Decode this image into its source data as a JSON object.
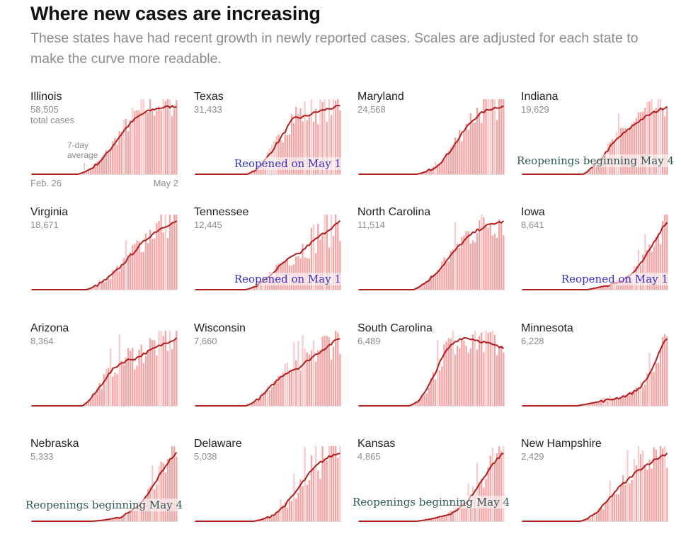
{
  "header": {
    "title": "Where new cases are increasing",
    "subtitle": "These states have had recent growth in newly reported cases. Scales are adjusted for each state to make the curve more readable."
  },
  "legend": {
    "total_label": "total cases",
    "avg_label_line1": "7-day",
    "avg_label_line2": "average",
    "date_start": "Feb. 26",
    "date_end": "May 2"
  },
  "colors": {
    "bar": "#f4a4a4",
    "bar_light": "#f8cccc",
    "line": "#b21d1d",
    "baseline": "#dddddd",
    "note_blue": "#3232c8",
    "note_teal": "#2f5a5a"
  },
  "chart_data": [
    {
      "type": "bar",
      "state": "Illinois",
      "total": "58,505",
      "x_range": [
        "Feb. 26",
        "May 2"
      ],
      "ylim": [
        0,
        1
      ],
      "shape": "ramp",
      "params": {
        "start": 0.32,
        "c": 0.58,
        "k": 11,
        "amp": 1.0,
        "jitter": 0.22
      },
      "note": null
    },
    {
      "type": "bar",
      "state": "Texas",
      "total": "31,433",
      "x_range": [
        "Feb. 26",
        "May 2"
      ],
      "ylim": [
        0,
        1
      ],
      "shape": "plateau",
      "params": {
        "start": 0.36,
        "c": 0.55,
        "k": 13,
        "amp": 0.92,
        "bump": 0.08,
        "tail": 0.12,
        "jitter": 0.25
      },
      "note": {
        "text": "Reopened on May 1",
        "color": "#3232c8",
        "style": "blue"
      }
    },
    {
      "type": "bar",
      "state": "Maryland",
      "total": "24,568",
      "x_range": [
        "Feb. 26",
        "May 2"
      ],
      "ylim": [
        0,
        1
      ],
      "shape": "ramp",
      "params": {
        "start": 0.4,
        "c": 0.68,
        "k": 12,
        "amp": 1.0,
        "jitter": 0.25
      },
      "note": null
    },
    {
      "type": "bar",
      "state": "Indiana",
      "total": "19,629",
      "x_range": [
        "Feb. 26",
        "May 2"
      ],
      "ylim": [
        0,
        1
      ],
      "shape": "plateau",
      "params": {
        "start": 0.42,
        "c": 0.58,
        "k": 13,
        "amp": 0.72,
        "bump": 0.0,
        "tail": 0.25,
        "jitter": 0.22
      },
      "note": {
        "text": "Reopenings beginning May 4",
        "color": "#2f5a5a",
        "style": "teal"
      }
    },
    {
      "type": "bar",
      "state": "Virginia",
      "total": "18,671",
      "x_range": [
        "Feb. 26",
        "May 2"
      ],
      "ylim": [
        0,
        1
      ],
      "shape": "ramp",
      "params": {
        "start": 0.38,
        "c": 0.68,
        "k": 8,
        "amp": 1.05,
        "jitter": 0.28
      },
      "note": null
    },
    {
      "type": "bar",
      "state": "Tennessee",
      "total": "12,445",
      "x_range": [
        "Feb. 26",
        "May 2"
      ],
      "ylim": [
        0,
        1
      ],
      "shape": "plateau",
      "params": {
        "start": 0.35,
        "c": 0.55,
        "k": 13,
        "amp": 0.58,
        "bump": 0.0,
        "tail": 0.4,
        "jitter": 0.35
      },
      "note": {
        "text": "Reopened on May 1",
        "color": "#3232c8",
        "style": "blue"
      }
    },
    {
      "type": "bar",
      "state": "North Carolina",
      "total": "11,514",
      "x_range": [
        "Feb. 26",
        "May 2"
      ],
      "ylim": [
        0,
        1
      ],
      "shape": "ramp",
      "params": {
        "start": 0.38,
        "c": 0.62,
        "k": 9,
        "amp": 1.0,
        "jitter": 0.3
      },
      "note": null
    },
    {
      "type": "bar",
      "state": "Iowa",
      "total": "8,641",
      "x_range": [
        "Feb. 26",
        "May 2"
      ],
      "ylim": [
        0,
        1
      ],
      "shape": "late",
      "params": {
        "start": 0.45,
        "c": 0.9,
        "k": 14,
        "amp": 1.0,
        "base": 0.18,
        "jitter": 0.3
      },
      "note": {
        "text": "Reopened on May 1",
        "color": "#3232c8",
        "style": "blue"
      }
    },
    {
      "type": "bar",
      "state": "Arizona",
      "total": "8,364",
      "x_range": [
        "Feb. 26",
        "May 2"
      ],
      "ylim": [
        0,
        1
      ],
      "shape": "plateau",
      "params": {
        "start": 0.35,
        "c": 0.48,
        "k": 15,
        "amp": 0.72,
        "bump": 0.0,
        "tail": 0.28,
        "jitter": 0.28
      },
      "note": null
    },
    {
      "type": "bar",
      "state": "Wisconsin",
      "total": "7,660",
      "x_range": [
        "Feb. 26",
        "May 2"
      ],
      "ylim": [
        0,
        1
      ],
      "shape": "plateau",
      "params": {
        "start": 0.35,
        "c": 0.52,
        "k": 14,
        "amp": 0.6,
        "bump": 0.0,
        "tail": 0.4,
        "jitter": 0.3
      },
      "note": null
    },
    {
      "type": "bar",
      "state": "South Carolina",
      "total": "6,489",
      "x_range": [
        "Feb. 26",
        "May 2"
      ],
      "ylim": [
        0,
        1
      ],
      "shape": "plateau",
      "params": {
        "start": 0.35,
        "c": 0.53,
        "k": 17,
        "amp": 0.95,
        "bump": 0.0,
        "tail": -0.18,
        "jitter": 0.28
      },
      "note": null
    },
    {
      "type": "bar",
      "state": "Minnesota",
      "total": "6,228",
      "x_range": [
        "Feb. 26",
        "May 2"
      ],
      "ylim": [
        0,
        1
      ],
      "shape": "late",
      "params": {
        "start": 0.38,
        "c": 0.93,
        "k": 18,
        "amp": 1.0,
        "base": 0.2,
        "jitter": 0.22
      },
      "note": null
    },
    {
      "type": "bar",
      "state": "Nebraska",
      "total": "5,333",
      "x_range": [
        "Feb. 26",
        "May 2"
      ],
      "ylim": [
        0,
        1
      ],
      "shape": "late",
      "params": {
        "start": 0.42,
        "c": 0.86,
        "k": 13,
        "amp": 1.0,
        "base": 0.08,
        "jitter": 0.22
      },
      "note": {
        "text": "Reopenings beginning May 4",
        "color": "#2f5a5a",
        "style": "teal"
      }
    },
    {
      "type": "bar",
      "state": "Delaware",
      "total": "5,038",
      "x_range": [
        "Feb. 26",
        "May 2"
      ],
      "ylim": [
        0,
        1
      ],
      "shape": "ramp",
      "params": {
        "start": 0.4,
        "c": 0.72,
        "k": 11,
        "amp": 0.95,
        "jitter": 0.35
      },
      "note": null
    },
    {
      "type": "bar",
      "state": "Kansas",
      "total": "4,865",
      "x_range": [
        "Feb. 26",
        "May 2"
      ],
      "ylim": [
        0,
        1
      ],
      "shape": "late",
      "params": {
        "start": 0.4,
        "c": 0.85,
        "k": 13,
        "amp": 1.0,
        "base": 0.15,
        "jitter": 0.3
      },
      "note": {
        "text": "Reopenings beginning May 4",
        "color": "#2f5a5a",
        "style": "teal"
      }
    },
    {
      "type": "bar",
      "state": "New Hampshire",
      "total": "2,429",
      "x_range": [
        "Feb. 26",
        "May 2"
      ],
      "ylim": [
        0,
        1
      ],
      "shape": "plateau",
      "params": {
        "start": 0.4,
        "c": 0.6,
        "k": 14,
        "amp": 0.7,
        "bump": 0.0,
        "tail": 0.3,
        "jitter": 0.3
      },
      "note": null
    }
  ]
}
